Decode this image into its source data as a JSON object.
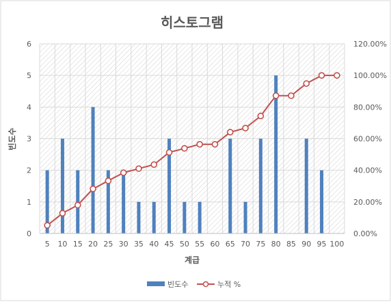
{
  "chart_data": {
    "type": "bar+line",
    "title": "히스토그램",
    "xlabel": "계급",
    "ylabel": "빈도수",
    "categories": [
      "5",
      "10",
      "15",
      "20",
      "25",
      "30",
      "35",
      "40",
      "45",
      "50",
      "55",
      "60",
      "65",
      "70",
      "75",
      "80",
      "85",
      "90",
      "95",
      "100"
    ],
    "ylim": [
      0,
      6
    ],
    "yticks": [
      "0",
      "1",
      "2",
      "3",
      "4",
      "5",
      "6"
    ],
    "y2lim": [
      0,
      1.2
    ],
    "y2ticks": [
      "0.00%",
      "20.00%",
      "40.00%",
      "60.00%",
      "80.00%",
      "100.00%",
      "120.00%"
    ],
    "grid": true,
    "legend_position": "bottom",
    "series": [
      {
        "name": "빈도수",
        "type": "bar",
        "axis": "left",
        "color": "#4f81bd",
        "values": [
          2,
          3,
          2,
          4,
          2,
          2,
          1,
          1,
          3,
          1,
          1,
          0,
          3,
          1,
          3,
          5,
          0,
          3,
          2,
          0
        ]
      },
      {
        "name": "누적 %",
        "type": "line",
        "axis": "right",
        "color": "#c0504d",
        "values": [
          0.0513,
          0.1282,
          0.1795,
          0.2821,
          0.3333,
          0.3846,
          0.4103,
          0.4359,
          0.5128,
          0.5385,
          0.5641,
          0.5641,
          0.641,
          0.6667,
          0.7436,
          0.8718,
          0.8718,
          0.9487,
          1.0,
          1.0
        ]
      }
    ]
  }
}
